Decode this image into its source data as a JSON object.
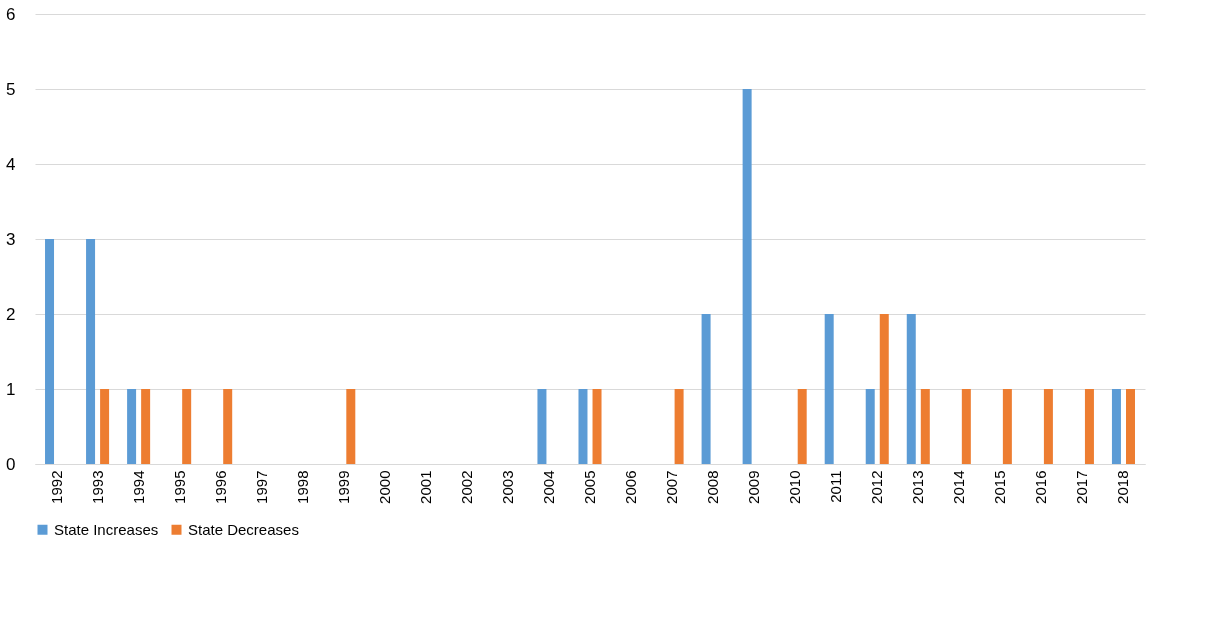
{
  "chart_data": {
    "type": "bar",
    "categories": [
      "1992",
      "1993",
      "1994",
      "1995",
      "1996",
      "1997",
      "1998",
      "1999",
      "2000",
      "2001",
      "2002",
      "2003",
      "2004",
      "2005",
      "2006",
      "2007",
      "2008",
      "2009",
      "2010",
      "2011",
      "2012",
      "2013",
      "2014",
      "2015",
      "2016",
      "2017",
      "2018"
    ],
    "series": [
      {
        "name": "State Increases",
        "color": "#5b9bd5",
        "values": [
          3,
          3,
          1,
          0,
          0,
          0,
          0,
          0,
          0,
          0,
          0,
          0,
          1,
          1,
          0,
          0,
          2,
          5,
          0,
          2,
          1,
          2,
          0,
          0,
          0,
          0,
          1
        ]
      },
      {
        "name": "State Decreases",
        "color": "#ed7d31",
        "values": [
          0,
          1,
          1,
          1,
          1,
          0,
          0,
          1,
          0,
          0,
          0,
          0,
          0,
          1,
          0,
          1,
          0,
          0,
          1,
          0,
          2,
          1,
          1,
          1,
          1,
          1,
          1
        ]
      }
    ],
    "ylim": [
      0,
      6
    ],
    "yticks": [
      0,
      1,
      2,
      3,
      4,
      5,
      6
    ],
    "grid": "y",
    "legend": "bottom"
  }
}
